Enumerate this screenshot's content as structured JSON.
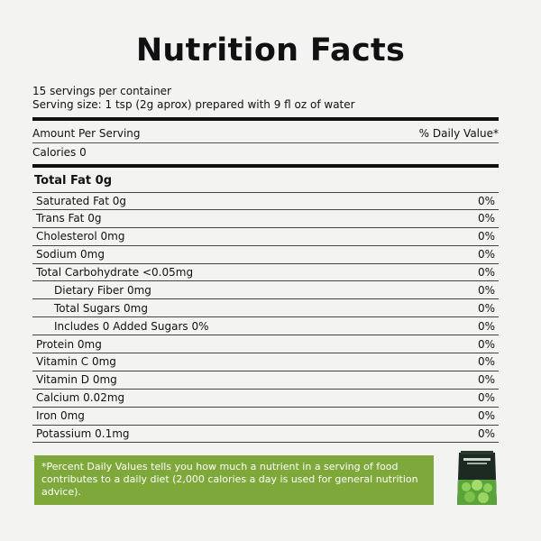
{
  "title": "Nutrition Facts",
  "servings_per_container": "15 servings per container",
  "serving_size": "Serving size: 1 tsp (2g aprox) prepared with 9 fl oz of water",
  "amount_per_serving": "Amount Per Serving",
  "daily_value_header": "% Daily Value*",
  "calories": "Calories  0",
  "total_fat": "Total Fat  0g",
  "rows": [
    {
      "label": "Saturated Fat  0g",
      "dv": "0%",
      "indent": false
    },
    {
      "label": "Trans Fat 0g",
      "dv": "0%",
      "indent": false
    },
    {
      "label": "Cholesterol 0mg",
      "dv": "0%",
      "indent": false
    },
    {
      "label": "Sodium 0mg",
      "dv": "0%",
      "indent": false
    },
    {
      "label": "Total Carbohydrate <0.05mg",
      "dv": "0%",
      "indent": false
    },
    {
      "label": "Dietary Fiber 0mg",
      "dv": "0%",
      "indent": true
    },
    {
      "label": "Total Sugars 0mg",
      "dv": "0%",
      "indent": true
    },
    {
      "label": "Includes 0 Added Sugars 0%",
      "dv": "0%",
      "indent": true
    },
    {
      "label": "Protein 0mg",
      "dv": "0%",
      "indent": false
    },
    {
      "label": "Vitamin C 0mg",
      "dv": "0%",
      "indent": false
    },
    {
      "label": "Vitamin D 0mg",
      "dv": "0%",
      "indent": false
    },
    {
      "label": "Calcium 0.02mg",
      "dv": "0%",
      "indent": false
    },
    {
      "label": "Iron 0mg",
      "dv": "0%",
      "indent": false
    },
    {
      "label": "Potassium 0.1mg",
      "dv": "0%",
      "indent": false
    }
  ],
  "footnote": "*Percent Daily Values tells  you how much a nutrient in a serving of food contributes to a daily diet (2,000 calories a day is used for general nutrition advice).",
  "colors": {
    "accent": "#7ea83a",
    "bag_dark": "#1d2a22",
    "bag_green": "#5aa33a"
  },
  "product_image_icon": "product-bag-icon"
}
